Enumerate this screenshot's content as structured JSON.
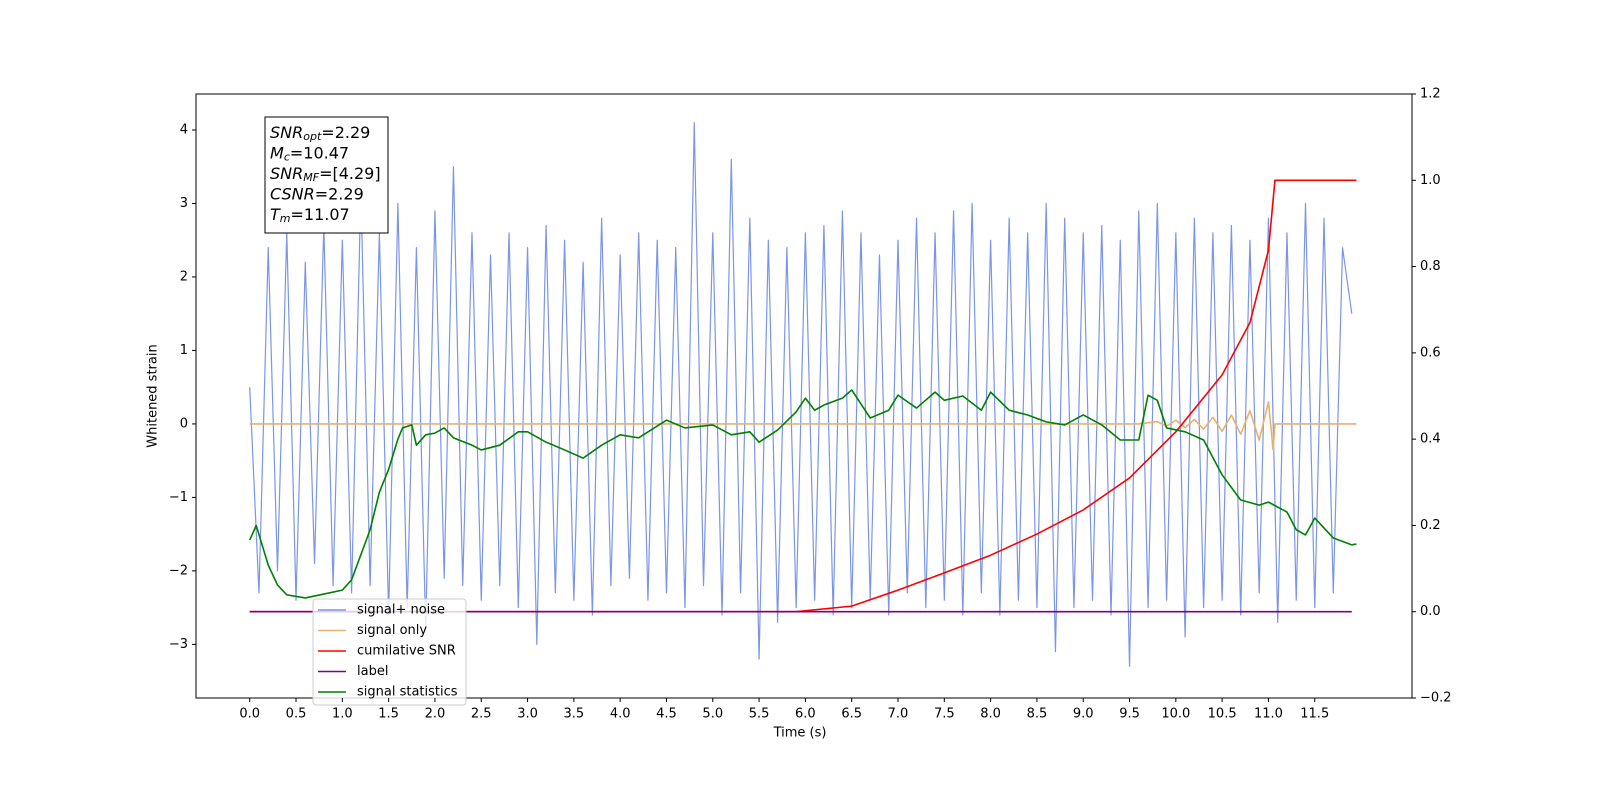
{
  "chart_data": {
    "type": "line",
    "xlabel": "Time (s)",
    "ylabel": "Whitened strain",
    "xlim": [
      -0.58,
      12.55
    ],
    "ylim": [
      -3.73,
      4.49
    ],
    "y2lim": [
      -0.2,
      1.2
    ],
    "xticks": [
      {
        "value": 0,
        "label": "0.0"
      },
      0.5,
      {
        "value": 1,
        "label": "1.0"
      },
      1.5,
      {
        "value": 2,
        "label": "2.0"
      },
      2.5,
      {
        "value": 3,
        "label": "3.0"
      },
      3.5,
      {
        "value": 4,
        "label": "4.0"
      },
      4.5,
      {
        "value": 5,
        "label": "5.0"
      },
      5.5,
      {
        "value": 6,
        "label": "6.0"
      },
      6.5,
      {
        "value": 7,
        "label": "7.0"
      },
      7.5,
      {
        "value": 8,
        "label": "8.0"
      },
      8.5,
      {
        "value": 9,
        "label": "9.0"
      },
      9.5,
      {
        "value": 10,
        "label": "10.0"
      },
      10.5,
      {
        "value": 11,
        "label": "11.0"
      },
      11.5
    ],
    "yticks": [
      {
        "value": -3,
        "label": "−3"
      },
      {
        "value": -2,
        "label": "−2"
      },
      {
        "value": -1,
        "label": "−1"
      },
      0,
      1,
      2,
      3,
      4
    ],
    "y2ticks": [
      {
        "value": -0.2,
        "label": "−0.2"
      },
      {
        "value": 0,
        "label": "0.0"
      },
      0.2,
      0.4,
      0.6,
      0.8,
      {
        "value": 1,
        "label": "1.0"
      },
      1.2
    ],
    "legend": "lower left",
    "annotation": [
      {
        "symbol": "SNR",
        "sub": "opt",
        "text": "=2.29"
      },
      {
        "symbol": "M",
        "sub": "c",
        "text": "=10.47"
      },
      {
        "symbol": "SNR",
        "sub": "MF",
        "text": "=[4.29]"
      },
      {
        "symbol": "CSNR",
        "text": "=2.29"
      },
      {
        "symbol": "T",
        "sub": "m",
        "text": "=11.07"
      }
    ],
    "series": [
      {
        "name": "signal+ noise",
        "color": "#7b95e7",
        "axis": "y",
        "x": [
          0,
          0.1,
          0.2,
          0.3,
          0.4,
          0.5,
          0.6,
          0.7,
          0.8,
          0.9,
          1,
          1.1,
          1.2,
          1.3,
          1.4,
          1.5,
          1.6,
          1.7,
          1.8,
          1.9,
          2,
          2.1,
          2.2,
          2.3,
          2.4,
          2.5,
          2.6,
          2.7,
          2.8,
          2.9,
          3,
          3.1,
          3.2,
          3.3,
          3.4,
          3.5,
          3.6,
          3.7,
          3.8,
          3.9,
          4,
          4.1,
          4.2,
          4.3,
          4.4,
          4.5,
          4.6,
          4.7,
          4.8,
          4.9,
          5,
          5.1,
          5.2,
          5.3,
          5.4,
          5.5,
          5.6,
          5.7,
          5.8,
          5.9,
          6,
          6.1,
          6.2,
          6.3,
          6.4,
          6.5,
          6.6,
          6.7,
          6.8,
          6.9,
          7,
          7.1,
          7.2,
          7.3,
          7.4,
          7.5,
          7.6,
          7.7,
          7.8,
          7.9,
          8,
          8.1,
          8.2,
          8.3,
          8.4,
          8.5,
          8.6,
          8.7,
          8.8,
          8.9,
          9,
          9.1,
          9.2,
          9.3,
          9.4,
          9.5,
          9.6,
          9.7,
          9.8,
          9.9,
          10,
          10.1,
          10.2,
          10.3,
          10.4,
          10.5,
          10.6,
          10.7,
          10.8,
          10.9,
          11,
          11.1,
          11.2,
          11.3,
          11.4,
          11.5,
          11.6,
          11.7,
          11.8,
          11.9
        ],
        "values": [
          0.5,
          -2.3,
          2.4,
          -2.0,
          2.6,
          -2.4,
          2.2,
          -1.9,
          2.7,
          -2.2,
          2.5,
          -2.3,
          3.2,
          -2.2,
          2.6,
          -2.6,
          3.0,
          -2.5,
          2.4,
          -2.8,
          2.9,
          -2.1,
          3.5,
          -2.2,
          2.6,
          -2.4,
          2.3,
          -2.2,
          2.6,
          -2.5,
          2.4,
          -3.0,
          2.7,
          -2.3,
          2.5,
          -2.4,
          2.2,
          -2.6,
          2.8,
          -2.2,
          2.3,
          -2.1,
          2.6,
          -2.4,
          2.5,
          -2.3,
          2.4,
          -2.5,
          4.1,
          -2.2,
          2.6,
          -2.6,
          3.6,
          -2.3,
          2.8,
          -3.2,
          2.5,
          -2.7,
          2.4,
          -2.5,
          2.6,
          -2.4,
          2.7,
          -2.6,
          2.9,
          -2.5,
          2.6,
          -2.4,
          2.3,
          -2.6,
          2.5,
          -2.3,
          2.8,
          -2.5,
          2.6,
          -2.4,
          2.9,
          -2.6,
          3.0,
          -2.3,
          2.5,
          -2.6,
          2.8,
          -2.4,
          2.6,
          -2.5,
          3.0,
          -3.1,
          2.8,
          -2.5,
          2.6,
          -2.4,
          2.7,
          -2.6,
          2.5,
          -3.3,
          2.9,
          -2.5,
          3.0,
          -2.4,
          2.6,
          -2.9,
          2.8,
          -2.5,
          2.6,
          -2.4,
          2.7,
          -2.6,
          2.5,
          -2.3,
          2.8,
          -2.7,
          2.6,
          -2.4,
          3.0,
          -2.5,
          2.8,
          -2.3,
          2.4,
          1.5
        ]
      },
      {
        "name": "signal only",
        "color": "#e6b26e",
        "axis": "y",
        "x": [
          0,
          9.6,
          9.8,
          9.9,
          10.0,
          10.1,
          10.2,
          10.3,
          10.4,
          10.5,
          10.6,
          10.7,
          10.8,
          10.9,
          11.0,
          11.05,
          11.07,
          11.95
        ],
        "values": [
          0,
          0,
          0.03,
          -0.03,
          0.05,
          -0.05,
          0.06,
          -0.07,
          0.09,
          -0.1,
          0.12,
          -0.14,
          0.18,
          -0.22,
          0.3,
          -0.35,
          0,
          0
        ]
      },
      {
        "name": "cumilative SNR",
        "color": "#ff0000",
        "axis": "y2",
        "x": [
          0,
          5.9,
          6.5,
          7.0,
          7.5,
          8.0,
          8.5,
          9.0,
          9.5,
          10.0,
          10.5,
          10.8,
          11.0,
          11.07,
          11.95
        ],
        "values": [
          0,
          0,
          0.013,
          0.05,
          0.09,
          0.131,
          0.18,
          0.236,
          0.31,
          0.417,
          0.549,
          0.67,
          0.838,
          1.0,
          1.0
        ]
      },
      {
        "name": "label",
        "color": "#800080",
        "axis": "y2",
        "x": [
          0,
          11.9
        ],
        "values": [
          0,
          0
        ]
      },
      {
        "name": "signal statistics",
        "color": "#008000",
        "axis": "y2",
        "x": [
          0,
          0.07,
          0.2,
          0.3,
          0.4,
          0.6,
          0.8,
          1.0,
          1.1,
          1.3,
          1.4,
          1.5,
          1.6,
          1.65,
          1.75,
          1.8,
          1.9,
          2.0,
          2.1,
          2.2,
          2.4,
          2.5,
          2.7,
          2.9,
          3.0,
          3.2,
          3.4,
          3.6,
          3.8,
          4.0,
          4.2,
          4.5,
          4.7,
          5.0,
          5.2,
          5.4,
          5.5,
          5.7,
          5.9,
          6.0,
          6.1,
          6.2,
          6.4,
          6.5,
          6.7,
          6.9,
          7.0,
          7.2,
          7.4,
          7.5,
          7.7,
          7.9,
          8.0,
          8.2,
          8.4,
          8.6,
          8.8,
          9.0,
          9.2,
          9.4,
          9.6,
          9.7,
          9.8,
          9.9,
          10.1,
          10.3,
          10.5,
          10.7,
          10.9,
          11.0,
          11.2,
          11.3,
          11.4,
          11.5,
          11.7,
          11.9,
          11.95
        ],
        "values": [
          0.166,
          0.2,
          0.108,
          0.062,
          0.039,
          0.032,
          0.041,
          0.05,
          0.074,
          0.19,
          0.277,
          0.33,
          0.4,
          0.426,
          0.433,
          0.386,
          0.41,
          0.414,
          0.426,
          0.403,
          0.386,
          0.375,
          0.386,
          0.417,
          0.417,
          0.393,
          0.375,
          0.356,
          0.386,
          0.41,
          0.403,
          0.444,
          0.426,
          0.433,
          0.41,
          0.417,
          0.393,
          0.421,
          0.463,
          0.495,
          0.467,
          0.479,
          0.495,
          0.514,
          0.449,
          0.467,
          0.502,
          0.472,
          0.509,
          0.49,
          0.5,
          0.467,
          0.509,
          0.467,
          0.456,
          0.44,
          0.433,
          0.456,
          0.433,
          0.398,
          0.398,
          0.502,
          0.49,
          0.426,
          0.417,
          0.398,
          0.317,
          0.259,
          0.247,
          0.254,
          0.231,
          0.19,
          0.178,
          0.217,
          0.171,
          0.155,
          0.157
        ]
      }
    ]
  }
}
